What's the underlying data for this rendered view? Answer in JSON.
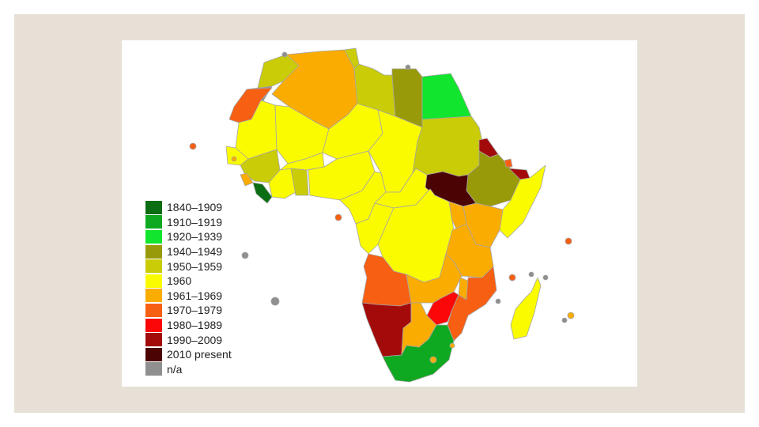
{
  "legend": {
    "items": [
      {
        "label": "1840–1909",
        "color": "#0b6e13"
      },
      {
        "label": "1910–1919",
        "color": "#0fa821"
      },
      {
        "label": "1920–1939",
        "color": "#11e52e"
      },
      {
        "label": "1940–1949",
        "color": "#999a0a"
      },
      {
        "label": "1950–1959",
        "color": "#c9cc07"
      },
      {
        "label": "1960",
        "color": "#fbfb00"
      },
      {
        "label": "1961–1969",
        "color": "#fbac00"
      },
      {
        "label": "1970–1979",
        "color": "#f75f13"
      },
      {
        "label": "1980–1989",
        "color": "#fb0707"
      },
      {
        "label": "1990–2009",
        "color": "#a30a0a"
      },
      {
        "label": "2010 present",
        "color": "#4c0303"
      },
      {
        "label": "n/a",
        "color": "#8f8f8f"
      }
    ]
  },
  "colors": {
    "frame": "#e6e0d6",
    "border": "#a5a5a5",
    "c1840": "#0b6e13",
    "c1910": "#0fa821",
    "c1920": "#11e52e",
    "c1940": "#999a0a",
    "c1950": "#c9cc07",
    "c1960": "#fbfb00",
    "c1961": "#fbac00",
    "c1970": "#f75f13",
    "c1980": "#fb0707",
    "c1990": "#a30a0a",
    "c2010": "#4c0303",
    "na": "#8f8f8f"
  }
}
